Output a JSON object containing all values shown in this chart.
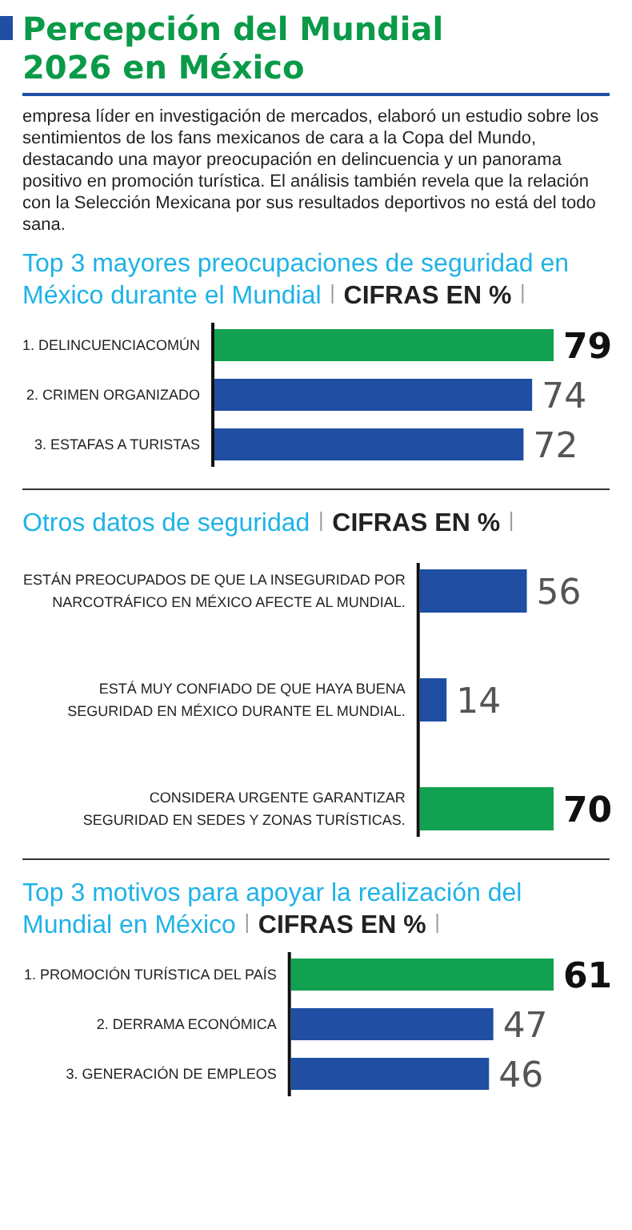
{
  "chart_data": [
    {
      "type": "other",
      "title": "Percepción del Mundial 2026 en México",
      "subtitle": "empresa líder en investigación de mercados, elaboró un estudio sobre los sentimientos de los fans mexicanos de cara a la Copa del Mundo, destacando una mayor preocupación en delincuencia y un panorama positivo en promoción turística. El análisis también revela que la relación con la Selección Mexicana por sus resultados deportivos no está del todo sana."
    },
    {
      "type": "bar",
      "orientation": "horizontal",
      "title": "Top 3 mayores preocupaciones de seguridad en México durante el Mundial",
      "subtitle": "CIFRAS EN %",
      "categories": [
        "1. DELINCUENCIACOMÚN",
        "2. CRIMEN ORGANIZADO",
        "3. ESTAFAS A TURISTAS"
      ],
      "values": [
        79,
        74,
        72
      ],
      "colors": [
        "#12a150",
        "#1f4ea3",
        "#1f4ea3"
      ],
      "data_labels": true
    },
    {
      "type": "bar",
      "orientation": "horizontal",
      "title": "Otros datos de seguridad",
      "subtitle": "CIFRAS EN %",
      "categories": [
        "ESTÁN PREOCUPADOS DE QUE LA INSEGURIDAD POR NARCOTRÁFICO EN MÉXICO AFECTE AL MUNDIAL.",
        "ESTÁ MUY CONFIADO DE QUE HAYA BUENA SEGURIDAD EN MÉXICO DURANTE EL MUNDIAL.",
        "CONSIDERA URGENTE GARANTIZAR SEGURIDAD EN SEDES Y ZONAS TURÍSTICAS."
      ],
      "values": [
        56,
        14,
        70
      ],
      "colors": [
        "#1f4ea3",
        "#1f4ea3",
        "#12a150"
      ],
      "data_labels": true
    },
    {
      "type": "bar",
      "orientation": "horizontal",
      "title": "Top 3 motivos para apoyar la realización del Mundial en México",
      "subtitle": "CIFRAS EN %",
      "categories": [
        "1. PROMOCIÓN TURÍSTICA DEL PAÍS",
        "2. DERRAMA ECONÓMICA",
        "3. GENERACIÓN DE EMPLEOS"
      ],
      "values": [
        61,
        47,
        46
      ],
      "colors": [
        "#12a150",
        "#1f4ea3",
        "#1f4ea3"
      ],
      "data_labels": true
    }
  ]
}
